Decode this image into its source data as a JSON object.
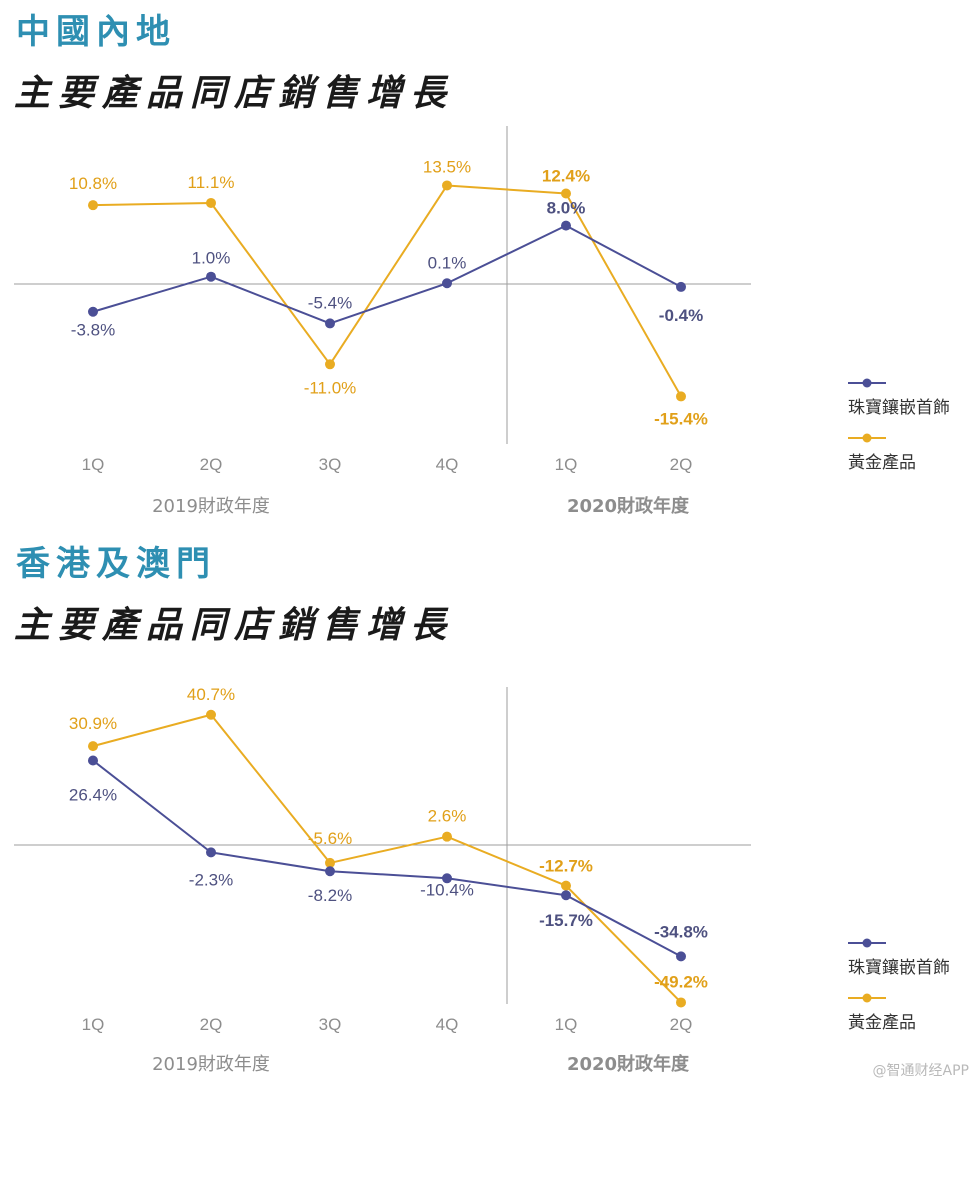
{
  "colors": {
    "accent": "#2e8fb2",
    "jewelry": "#4b4f96",
    "gold": "#e9ac22",
    "axis": "#9e9e9e"
  },
  "chart_data": [
    {
      "type": "line",
      "region": "中國內地",
      "title": "主要產品同店銷售增長",
      "categories": [
        "1Q",
        "2Q",
        "3Q",
        "4Q",
        "1Q",
        "2Q"
      ],
      "year_groups": [
        {
          "label": "2019財政年度",
          "bold": false
        },
        {
          "label": "2020財政年度",
          "bold": true
        }
      ],
      "series": [
        {
          "name": "珠寶鑲嵌首飾",
          "values": [
            -3.8,
            1.0,
            -5.4,
            0.1,
            8.0,
            -0.4
          ],
          "labels": [
            "-3.8%",
            "1.0%",
            "-5.4%",
            "0.1%",
            "8.0%",
            "-0.4%"
          ]
        },
        {
          "name": "黃金產品",
          "values": [
            10.8,
            11.1,
            -11.0,
            13.5,
            12.4,
            -15.4
          ],
          "labels": [
            "10.8%",
            "11.1%",
            "-11.0%",
            "13.5%",
            "12.4%",
            "-15.4%"
          ]
        }
      ]
    },
    {
      "type": "line",
      "region": "香港及澳門",
      "title": "主要產品同店銷售增長",
      "categories": [
        "1Q",
        "2Q",
        "3Q",
        "4Q",
        "1Q",
        "2Q"
      ],
      "year_groups": [
        {
          "label": "2019財政年度",
          "bold": false
        },
        {
          "label": "2020財政年度",
          "bold": true
        }
      ],
      "series": [
        {
          "name": "珠寶鑲嵌首飾",
          "values": [
            26.4,
            -2.3,
            -8.2,
            -10.4,
            -15.7,
            -34.8
          ],
          "labels": [
            "26.4%",
            "-2.3%",
            "-8.2%",
            "-10.4%",
            "-15.7%",
            "-34.8%"
          ]
        },
        {
          "name": "黃金產品",
          "values": [
            30.9,
            40.7,
            -5.6,
            2.6,
            -12.7,
            -49.2
          ],
          "labels": [
            "30.9%",
            "40.7%",
            "-5.6%",
            "2.6%",
            "-12.7%",
            "-49.2%"
          ]
        }
      ]
    }
  ],
  "watermark": "@智通财经APP"
}
